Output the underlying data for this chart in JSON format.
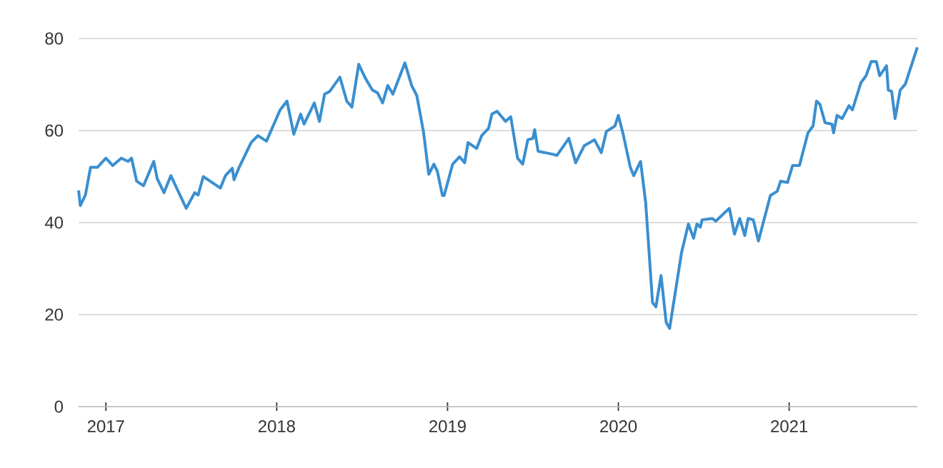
{
  "chart_data": {
    "type": "line",
    "color": "#3a8fd0",
    "xlim": [
      2016.84,
      2021.75
    ],
    "ylim": [
      0,
      80
    ],
    "xticks": [
      2017,
      2018,
      2019,
      2020,
      2021
    ],
    "yticks": [
      0,
      20,
      40,
      60,
      80
    ],
    "grid": "y",
    "marker": "none",
    "line_style": "solid",
    "x": [
      2016.84,
      2016.85,
      2016.88,
      2016.91,
      2016.95,
      2017.0,
      2017.04,
      2017.09,
      2017.13,
      2017.15,
      2017.18,
      2017.22,
      2017.28,
      2017.3,
      2017.34,
      2017.38,
      2017.47,
      2017.52,
      2017.54,
      2017.57,
      2017.67,
      2017.7,
      2017.74,
      2017.75,
      2017.78,
      2017.85,
      2017.89,
      2017.94,
      2018.02,
      2018.06,
      2018.1,
      2018.14,
      2018.16,
      2018.22,
      2018.25,
      2018.28,
      2018.31,
      2018.37,
      2018.41,
      2018.44,
      2018.48,
      2018.52,
      2018.56,
      2018.59,
      2018.62,
      2018.65,
      2018.68,
      2018.75,
      2018.79,
      2018.82,
      2018.86,
      2018.89,
      2018.92,
      2018.94,
      2018.97,
      2018.98,
      2019.03,
      2019.07,
      2019.1,
      2019.12,
      2019.17,
      2019.2,
      2019.24,
      2019.26,
      2019.29,
      2019.34,
      2019.37,
      2019.41,
      2019.44,
      2019.47,
      2019.5,
      2019.51,
      2019.53,
      2019.61,
      2019.64,
      2019.68,
      2019.71,
      2019.75,
      2019.8,
      2019.86,
      2019.9,
      2019.93,
      2019.98,
      2020.0,
      2020.03,
      2020.07,
      2020.09,
      2020.13,
      2020.16,
      2020.2,
      2020.22,
      2020.25,
      2020.28,
      2020.3,
      2020.37,
      2020.41,
      2020.44,
      2020.46,
      2020.48,
      2020.49,
      2020.55,
      2020.57,
      2020.65,
      2020.68,
      2020.71,
      2020.74,
      2020.76,
      2020.79,
      2020.82,
      2020.89,
      2020.93,
      2020.95,
      2020.99,
      2021.02,
      2021.06,
      2021.11,
      2021.14,
      2021.16,
      2021.18,
      2021.21,
      2021.25,
      2021.26,
      2021.28,
      2021.31,
      2021.35,
      2021.37,
      2021.42,
      2021.45,
      2021.48,
      2021.51,
      2021.53,
      2021.57,
      2021.58,
      2021.6,
      2021.62,
      2021.65,
      2021.68,
      2021.75
    ],
    "values": [
      47,
      43.7,
      46,
      52,
      52,
      54,
      52.4,
      54,
      53.3,
      54,
      49,
      48,
      53.3,
      49.6,
      46.5,
      50.2,
      43.1,
      46.5,
      46,
      50,
      47.5,
      50.2,
      51.8,
      49.3,
      52,
      57.4,
      58.9,
      57.7,
      64.5,
      66.4,
      59.2,
      63.6,
      61.4,
      66,
      62,
      67.9,
      68.5,
      71.6,
      66.4,
      65.1,
      74.4,
      71.3,
      68.8,
      68.2,
      66,
      69.8,
      67.9,
      74.7,
      69.8,
      67.6,
      59.5,
      50.5,
      52.7,
      51.2,
      45.9,
      45.9,
      52.7,
      54.3,
      53,
      57.4,
      56.1,
      58.9,
      60.5,
      63.6,
      64.2,
      62,
      63,
      54,
      52.7,
      58,
      58.3,
      60.2,
      55.5,
      54.9,
      54.6,
      56.7,
      58.3,
      53,
      56.7,
      58,
      55.2,
      59.8,
      61,
      63.3,
      58.9,
      52,
      50.2,
      53.3,
      44.3,
      22.6,
      21.7,
      28.5,
      18.3,
      17,
      33.5,
      39.7,
      36.6,
      39.7,
      39,
      40.6,
      40.9,
      40.3,
      43.1,
      37.5,
      40.9,
      37.2,
      40.9,
      40.6,
      36,
      45.9,
      46.8,
      49,
      48.7,
      52.4,
      52.4,
      59.5,
      61,
      66.4,
      65.7,
      61.7,
      61.4,
      59.5,
      63.3,
      62.6,
      65.4,
      64.5,
      70.4,
      71.9,
      75,
      75,
      71.9,
      74.1,
      68.8,
      68.5,
      62.6,
      68.8,
      70.1,
      78.1
    ]
  }
}
